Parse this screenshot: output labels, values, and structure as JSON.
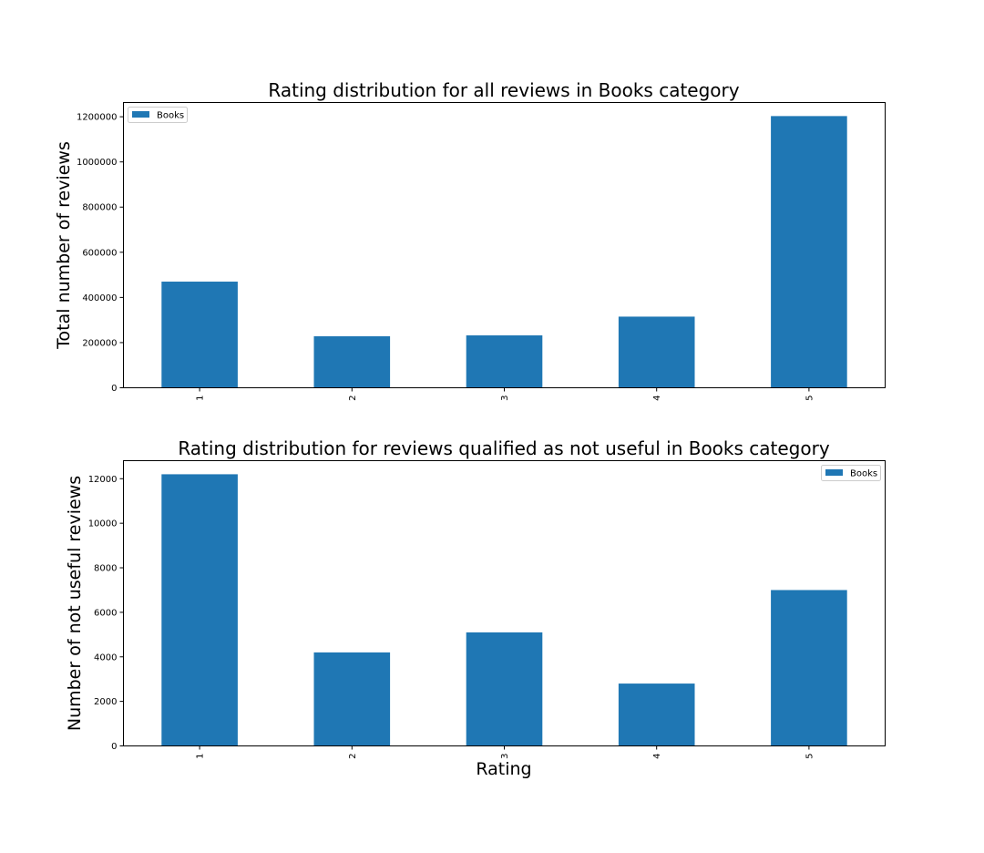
{
  "chart_data": [
    {
      "type": "bar",
      "title": "Rating distribution for all reviews in Books category",
      "xlabel": "",
      "ylabel": "Total number of reviews",
      "categories": [
        "1",
        "2",
        "3",
        "4",
        "5"
      ],
      "series": [
        {
          "name": "Books",
          "values": [
            470000,
            228000,
            232000,
            315000,
            1203000
          ],
          "color": "#1f77b4"
        }
      ],
      "yticks": [
        0,
        200000,
        400000,
        600000,
        800000,
        1000000,
        1200000
      ],
      "ylim": [
        0,
        1263000
      ],
      "legend": "top-left",
      "grid": false
    },
    {
      "type": "bar",
      "title": "Rating distribution for reviews qualified as not useful in Books category",
      "xlabel": "Rating",
      "ylabel": "Number of not useful reviews",
      "categories": [
        "1",
        "2",
        "3",
        "4",
        "5"
      ],
      "series": [
        {
          "name": "Books",
          "values": [
            12200,
            4200,
            5100,
            2800,
            7000
          ],
          "color": "#1f77b4"
        }
      ],
      "yticks": [
        0,
        2000,
        4000,
        6000,
        8000,
        10000,
        12000
      ],
      "ylim": [
        0,
        12810
      ],
      "legend": "top-right",
      "grid": false
    }
  ]
}
